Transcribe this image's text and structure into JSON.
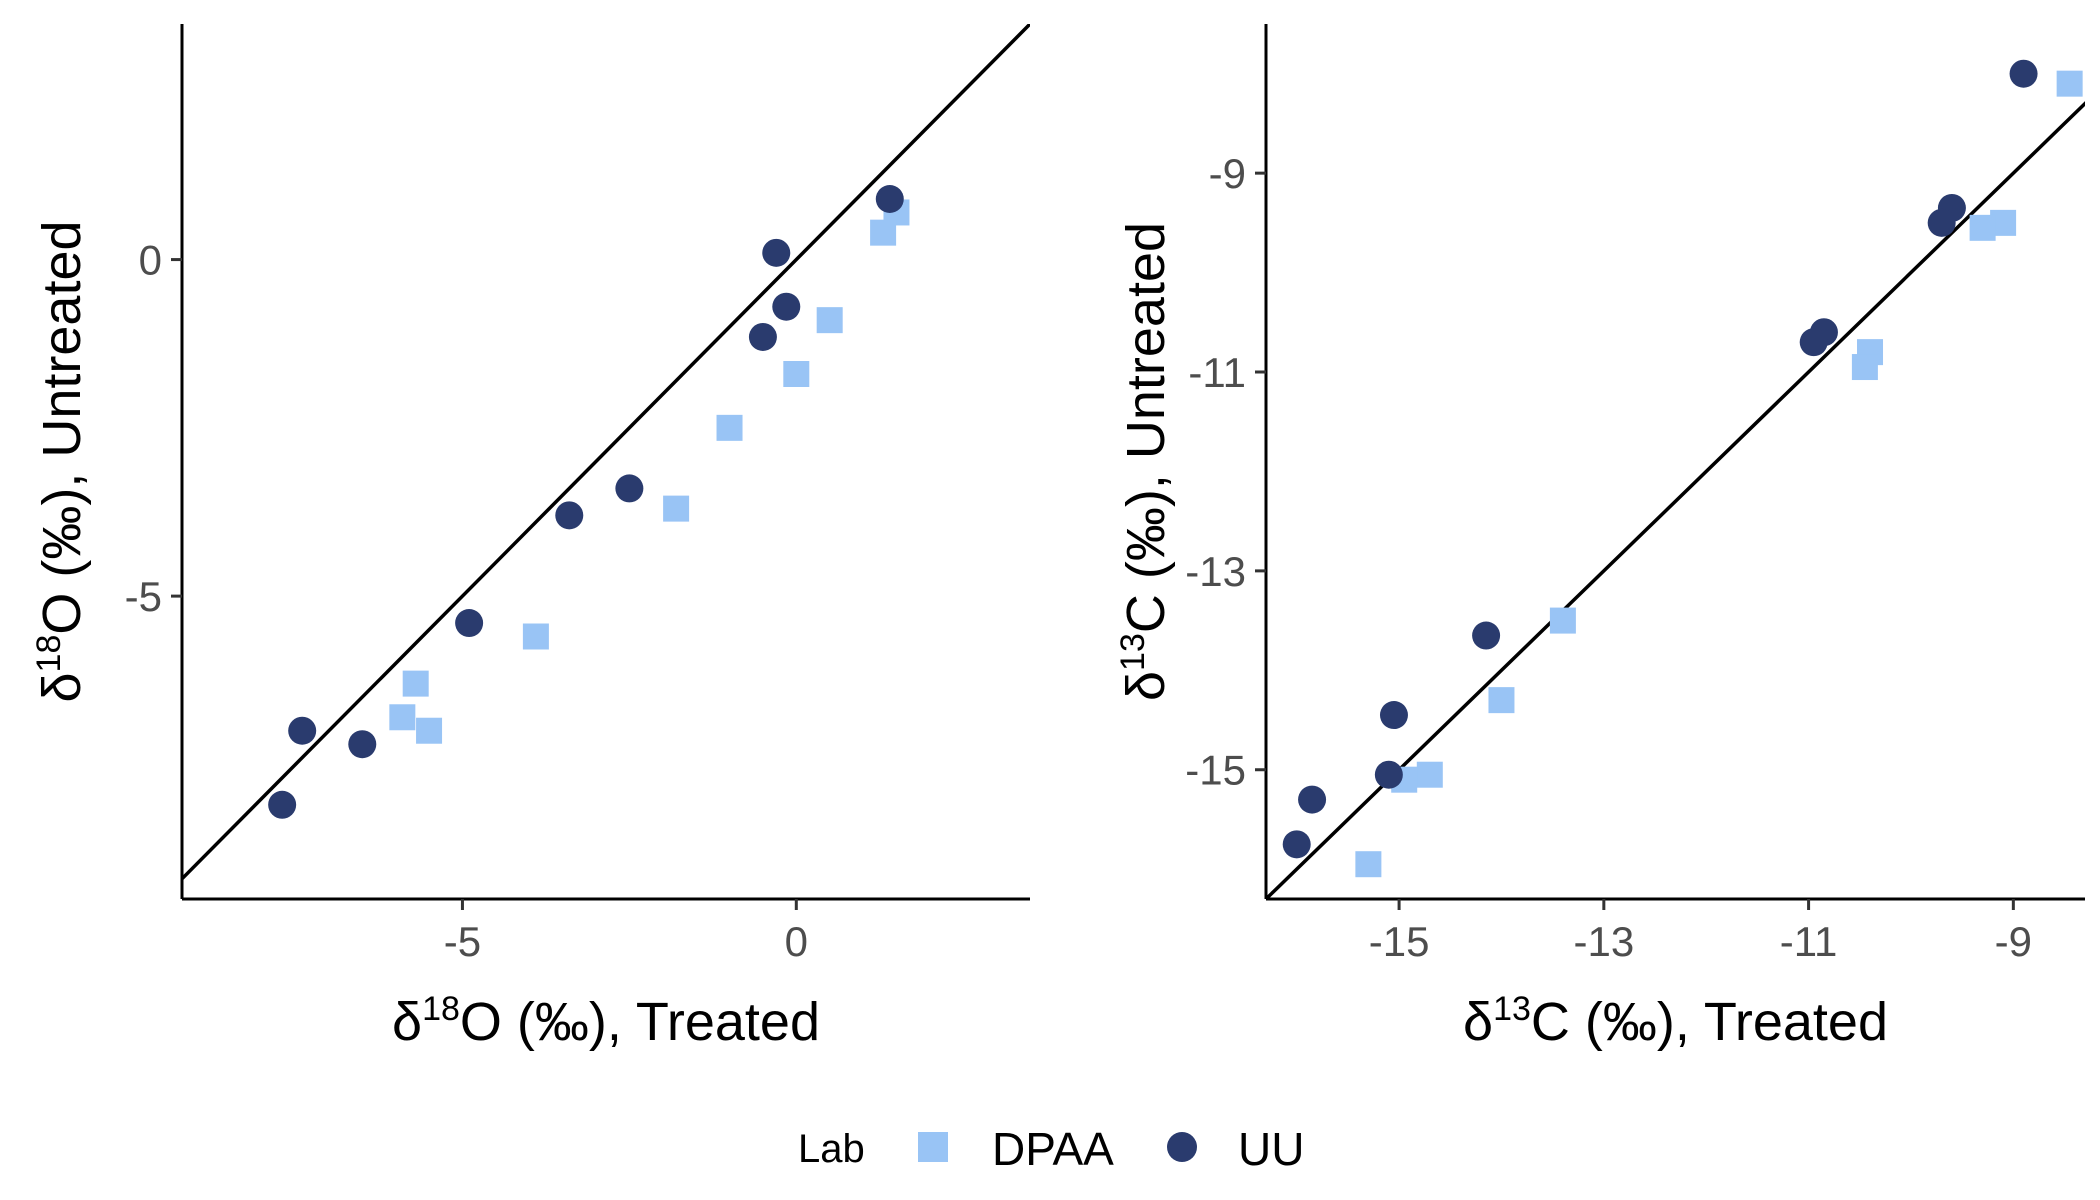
{
  "colors": {
    "DPAA": "#99c4f5",
    "UU": "#2a3b6e",
    "axis": "#000000",
    "identity_line": "#000000"
  },
  "legend": {
    "title": "Lab",
    "placement": "bottom",
    "entries": [
      {
        "label": "DPAA",
        "shape": "square",
        "color": "#99c4f5"
      },
      {
        "label": "UU",
        "shape": "circle",
        "color": "#2a3b6e"
      }
    ]
  },
  "chart_data": [
    {
      "type": "scatter",
      "title": "",
      "xlabel": {
        "delta": "δ",
        "iso": "18",
        "rest": "O (‰), Treated"
      },
      "ylabel": {
        "delta": "δ",
        "iso": "18",
        "rest": "O (‰), Untreated"
      },
      "xlim": [
        -9.2,
        3.5
      ],
      "ylim": [
        -9.5,
        3.5
      ],
      "xticks": [
        -5,
        0
      ],
      "yticks": [
        -5,
        0
      ],
      "grid": false,
      "identity_line": true,
      "series": [
        {
          "name": "DPAA",
          "points": [
            [
              1.5,
              0.7
            ],
            [
              1.3,
              0.4
            ],
            [
              0.5,
              -0.9
            ],
            [
              0.0,
              -1.7
            ],
            [
              -1.0,
              -2.5
            ],
            [
              -1.8,
              -3.7
            ],
            [
              -3.9,
              -5.6
            ],
            [
              -5.7,
              -6.3
            ],
            [
              -5.9,
              -6.8
            ],
            [
              -5.5,
              -7.0
            ]
          ]
        },
        {
          "name": "UU",
          "points": [
            [
              1.4,
              0.9
            ],
            [
              -0.3,
              0.1
            ],
            [
              -0.15,
              -0.7
            ],
            [
              -0.5,
              -1.15
            ],
            [
              -2.5,
              -3.4
            ],
            [
              -3.4,
              -3.8
            ],
            [
              -4.9,
              -5.4
            ],
            [
              -7.4,
              -7.0
            ],
            [
              -6.5,
              -7.2
            ],
            [
              -7.7,
              -8.1
            ]
          ]
        }
      ]
    },
    {
      "type": "scatter",
      "title": "",
      "xlabel": {
        "delta": "δ",
        "iso": "13",
        "rest": "C (‰), Treated"
      },
      "ylabel": {
        "delta": "δ",
        "iso": "13",
        "rest": "C (‰), Untreated"
      },
      "xlim": [
        -16.3,
        -8.3
      ],
      "ylim": [
        -16.3,
        -7.5
      ],
      "xticks": [
        -15,
        -13,
        -11,
        -9
      ],
      "yticks": [
        -15,
        -13,
        -11,
        -9
      ],
      "grid": false,
      "identity_line": true,
      "series": [
        {
          "name": "DPAA",
          "points": [
            [
              -8.45,
              -8.1
            ],
            [
              -9.1,
              -9.5
            ],
            [
              -9.3,
              -9.55
            ],
            [
              -10.4,
              -10.8
            ],
            [
              -10.45,
              -10.95
            ],
            [
              -13.4,
              -13.5
            ],
            [
              -14.0,
              -14.3
            ],
            [
              -14.7,
              -15.05
            ],
            [
              -14.95,
              -15.1
            ],
            [
              -15.3,
              -15.95
            ]
          ]
        },
        {
          "name": "UU",
          "points": [
            [
              -8.9,
              -8.0
            ],
            [
              -9.6,
              -9.35
            ],
            [
              -9.7,
              -9.5
            ],
            [
              -10.85,
              -10.6
            ],
            [
              -10.95,
              -10.7
            ],
            [
              -14.15,
              -13.65
            ],
            [
              -15.05,
              -14.45
            ],
            [
              -15.1,
              -15.05
            ],
            [
              -15.85,
              -15.3
            ],
            [
              -16.0,
              -15.75
            ]
          ]
        }
      ]
    }
  ]
}
